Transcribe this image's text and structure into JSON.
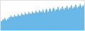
{
  "chart_data": {
    "type": "area",
    "x": [
      0,
      1,
      2,
      3,
      4,
      5,
      6,
      7,
      8,
      9,
      10,
      11,
      12,
      13,
      14,
      15,
      16,
      17,
      18,
      19,
      20,
      21,
      22,
      23,
      24,
      25,
      26,
      27,
      28,
      29,
      30,
      31,
      32,
      33,
      34,
      35,
      36,
      37,
      38,
      39,
      40,
      41,
      42,
      43,
      44,
      45,
      46,
      47,
      48,
      49,
      50,
      51,
      52,
      53,
      54,
      55,
      56,
      57,
      58,
      59,
      60,
      61,
      62,
      63,
      64,
      65,
      66,
      67,
      68,
      69,
      70,
      71,
      72,
      73,
      74,
      75,
      76,
      77,
      78,
      79,
      80,
      81,
      82,
      83,
      84,
      85,
      86,
      87,
      88,
      89,
      90,
      91,
      92,
      93,
      94,
      95
    ],
    "series": [
      {
        "type": "area",
        "color": "#6ab8e8",
        "values": [
          55,
          62,
          58,
          68,
          60,
          72,
          65,
          58,
          70,
          63,
          75,
          67,
          80,
          70,
          76,
          68,
          82,
          73,
          78,
          70,
          85,
          75,
          80,
          72,
          88,
          78,
          83,
          75,
          90,
          80,
          85,
          77,
          92,
          82,
          87,
          79,
          94,
          84,
          89,
          81,
          96,
          86,
          91,
          83,
          98,
          88,
          93,
          85,
          100,
          90,
          85,
          95,
          102,
          92,
          87,
          97,
          104,
          94,
          89,
          99,
          106,
          96,
          91,
          101,
          95,
          108,
          98,
          93,
          103,
          97,
          110,
          100,
          95,
          105,
          99,
          112,
          102,
          97,
          107,
          101,
          114,
          104,
          99,
          109,
          103,
          116,
          106,
          101,
          111,
          105,
          118,
          108,
          103,
          113,
          107,
          120
        ]
      },
      {
        "type": "line",
        "color": "#5baee0",
        "values": [
          55,
          62,
          58,
          68,
          60,
          72,
          65,
          58,
          70,
          63,
          75,
          67,
          80,
          70,
          76,
          68,
          82,
          73,
          78,
          70,
          85,
          75,
          80,
          72,
          88,
          78,
          83,
          75,
          90,
          80,
          85,
          77,
          92,
          82,
          87,
          79,
          94,
          84,
          89,
          81,
          96,
          86,
          91,
          83,
          98,
          88,
          93,
          85,
          100,
          90,
          85,
          95,
          102,
          92,
          87,
          97,
          104,
          94,
          89,
          99,
          106,
          96,
          91,
          101,
          95,
          108,
          98,
          93,
          103,
          97,
          110,
          100,
          95,
          105,
          99,
          112,
          102,
          97,
          107,
          101,
          114,
          104,
          99,
          109,
          103,
          116,
          106,
          101,
          111,
          105,
          118,
          108,
          103,
          113,
          107,
          120
        ]
      }
    ],
    "xlim": [
      0,
      95
    ],
    "ylim": [
      30,
      130
    ],
    "tick_labels": false,
    "grid": false
  }
}
